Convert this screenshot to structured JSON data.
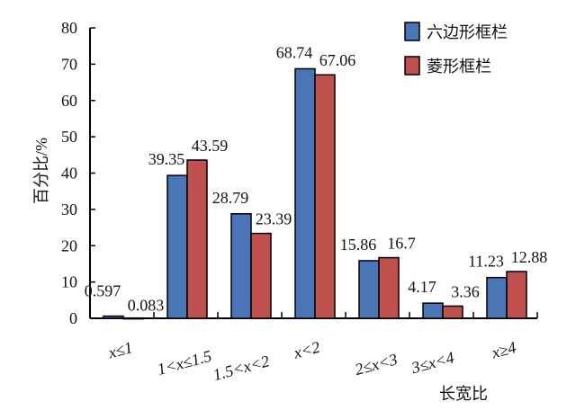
{
  "chart_data": {
    "type": "bar",
    "title": "",
    "xlabel": "长宽比",
    "ylabel": "百分比/%",
    "ylim": [
      0,
      80
    ],
    "yticks": [
      0,
      10,
      20,
      30,
      40,
      50,
      60,
      70,
      80
    ],
    "categories": [
      "x≤1",
      "1<x≤1.5",
      "1.5<x<2",
      "x<2",
      "2≤x<3",
      "3≤x<4",
      "x≥4"
    ],
    "series": [
      {
        "name": "六边形框栏",
        "color": "#4a76b8",
        "values": [
          0.597,
          39.35,
          28.79,
          68.74,
          15.86,
          4.17,
          11.23
        ],
        "labels": [
          "0.597",
          "39.35",
          "28.79",
          "68.74",
          "15.86",
          "4.17",
          "11.23"
        ]
      },
      {
        "name": "菱形框栏",
        "color": "#c0504d",
        "values": [
          0.083,
          43.59,
          23.39,
          67.06,
          16.7,
          3.36,
          12.88
        ],
        "labels": [
          "0.083",
          "43.59",
          "23.39",
          "67.06",
          "16.7",
          "3.36",
          "12.88"
        ]
      }
    ],
    "grid": false,
    "legend": "top-right"
  }
}
